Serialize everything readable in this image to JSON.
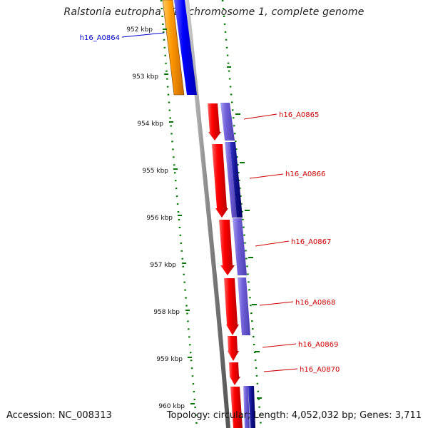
{
  "title": "Ralstonia eutropha H16 chromosome 1, complete genome",
  "footer": {
    "accession": "Accession: NC_008313",
    "summary": "Topology: circular; Length: 4,052,032 bp; Genes: 3,711"
  },
  "kbp_ticks": [
    "952 kbp",
    "953 kbp",
    "954 kbp",
    "955 kbp",
    "956 kbp",
    "957 kbp",
    "958 kbp",
    "959 kbp",
    "960 kbp"
  ],
  "genes": [
    {
      "id": "h16_A0864",
      "strand": "reverse",
      "color": "#0000cc"
    },
    {
      "id": "h16_A0865",
      "strand": "forward",
      "color": "#cc0000"
    },
    {
      "id": "h16_A0866",
      "strand": "forward",
      "color": "#cc0000"
    },
    {
      "id": "h16_A0867",
      "strand": "forward",
      "color": "#cc0000"
    },
    {
      "id": "h16_A0868",
      "strand": "forward",
      "color": "#cc0000"
    },
    {
      "id": "h16_A0869",
      "strand": "forward",
      "color": "#cc0000"
    },
    {
      "id": "h16_A0870",
      "strand": "forward",
      "color": "#cc0000"
    }
  ],
  "colors": {
    "backbone": "#8a8a8a",
    "gc_content": "#007700",
    "forward_cds": "#ee0000",
    "forward_cog": "#7060d8",
    "reverse_cds": "#f08c00",
    "reverse_cog": "#0000ee"
  }
}
